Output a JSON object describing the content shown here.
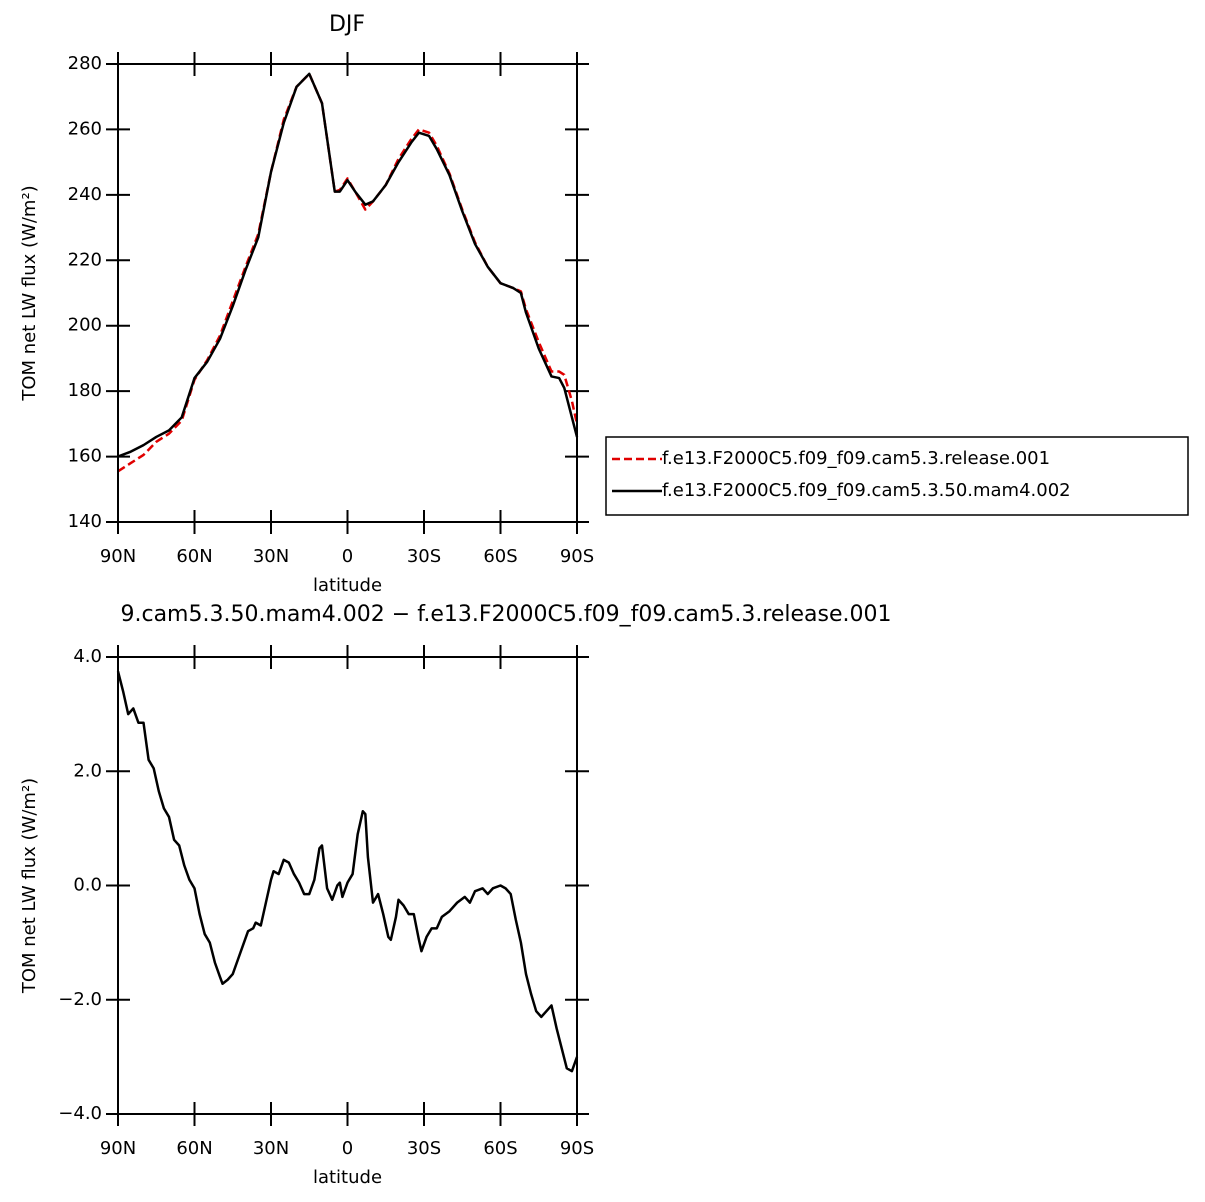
{
  "chart_data": [
    {
      "type": "line",
      "title": "DJF",
      "x_label": "latitude",
      "y_label": "TOM net LW flux (W/m²)",
      "x": [
        90,
        85,
        80,
        75,
        70,
        65,
        60,
        55,
        50,
        45,
        40,
        35,
        30,
        25,
        20,
        15,
        10,
        5,
        3,
        0,
        -3,
        -7,
        -10,
        -15,
        -20,
        -25,
        -28,
        -32,
        -35,
        -40,
        -45,
        -50,
        -55,
        -60,
        -65,
        -68,
        -70,
        -75,
        -80,
        -83,
        -85,
        -88,
        -90
      ],
      "series": [
        {
          "name": "f.e13.F2000C5.f09_f09.cam5.3.release.001",
          "color": "#e00000",
          "style": "dashed",
          "values": [
            155.5,
            158,
            160.5,
            164.5,
            167,
            171,
            183.5,
            189.5,
            197,
            207.5,
            218,
            228,
            247,
            263,
            273,
            277,
            268,
            241,
            241.5,
            245,
            241,
            235.5,
            238,
            243,
            251,
            257,
            260,
            259,
            255,
            246.5,
            235.5,
            225.5,
            218,
            213,
            211.5,
            210.5,
            205,
            195,
            186,
            186,
            185,
            177,
            170
          ]
        },
        {
          "name": "f.e13.F2000C5.f09_f09.cam5.3.50.mam4.002",
          "color": "#000000",
          "style": "solid",
          "values": [
            160,
            161.5,
            163.5,
            166,
            168,
            172,
            184,
            189,
            196,
            206,
            217,
            227,
            247,
            262,
            273,
            277,
            268,
            241,
            241,
            244.5,
            241,
            237,
            238,
            243,
            250,
            256,
            259,
            258,
            254,
            246,
            235,
            225,
            218,
            213,
            211.5,
            210,
            204,
            193,
            184.5,
            184,
            181,
            172,
            166
          ]
        }
      ],
      "xlim": [
        90,
        -90
      ],
      "xticks": [
        {
          "value": 90,
          "label": "90N"
        },
        {
          "value": 60,
          "label": "60N"
        },
        {
          "value": 30,
          "label": "30N"
        },
        0,
        {
          "value": -30,
          "label": "30S"
        },
        {
          "value": -60,
          "label": "60S"
        },
        {
          "value": -90,
          "label": "90S"
        }
      ],
      "ylim": [
        140,
        280
      ],
      "yticks": [
        140,
        160,
        180,
        200,
        220,
        240,
        260,
        280
      ],
      "legend": "right"
    },
    {
      "type": "line",
      "title": "9.cam5.3.50.mam4.002 − f.e13.F2000C5.f09_f09.cam5.3.release.001",
      "x_label": "latitude",
      "y_label": "TOM net LW flux (W/m²)",
      "x": [
        90,
        88,
        86,
        84,
        82,
        80,
        78,
        76,
        74,
        72,
        70,
        68,
        66,
        64,
        62,
        60,
        58,
        56,
        54,
        52,
        50,
        49,
        47,
        45,
        43,
        41,
        39,
        37,
        36,
        34,
        32,
        30,
        29,
        27,
        25,
        23,
        21,
        19,
        17,
        15,
        13,
        11,
        10,
        8,
        6,
        4,
        3,
        2,
        0,
        -2,
        -4,
        -6,
        -7,
        -8,
        -10,
        -12,
        -14,
        -16,
        -17,
        -19,
        -20,
        -22,
        -24,
        -26,
        -28,
        -29,
        -31,
        -33,
        -35,
        -37,
        -40,
        -43,
        -46,
        -48,
        -50,
        -53,
        -55,
        -57,
        -60,
        -62,
        -64,
        -66,
        -68,
        -70,
        -72,
        -74,
        -76,
        -78,
        -80,
        -82,
        -84,
        -86,
        -88,
        -90
      ],
      "series": [
        {
          "color": "#000000",
          "style": "solid",
          "values": [
            3.75,
            3.4,
            3.0,
            3.1,
            2.85,
            2.85,
            2.2,
            2.05,
            1.65,
            1.35,
            1.2,
            0.8,
            0.7,
            0.35,
            0.1,
            -0.05,
            -0.5,
            -0.85,
            -1.0,
            -1.35,
            -1.6,
            -1.72,
            -1.65,
            -1.55,
            -1.3,
            -1.05,
            -0.8,
            -0.75,
            -0.65,
            -0.7,
            -0.3,
            0.1,
            0.25,
            0.2,
            0.45,
            0.4,
            0.2,
            0.05,
            -0.15,
            -0.15,
            0.1,
            0.65,
            0.7,
            -0.05,
            -0.25,
            0.0,
            0.05,
            -0.2,
            0.05,
            0.2,
            0.9,
            1.3,
            1.25,
            0.5,
            -0.3,
            -0.15,
            -0.5,
            -0.9,
            -0.95,
            -0.55,
            -0.25,
            -0.35,
            -0.5,
            -0.5,
            -0.95,
            -1.15,
            -0.9,
            -0.75,
            -0.75,
            -0.55,
            -0.45,
            -0.3,
            -0.2,
            -0.3,
            -0.1,
            -0.05,
            -0.15,
            -0.05,
            0.0,
            -0.05,
            -0.15,
            -0.6,
            -1.0,
            -1.55,
            -1.9,
            -2.2,
            -2.3,
            -2.2,
            -2.1,
            -2.5,
            -2.85,
            -3.2,
            -3.25,
            -3.0
          ]
        }
      ],
      "xlim": [
        90,
        -90
      ],
      "xticks": [
        {
          "value": 90,
          "label": "90N"
        },
        {
          "value": 60,
          "label": "60N"
        },
        {
          "value": 30,
          "label": "30N"
        },
        0,
        {
          "value": -30,
          "label": "30S"
        },
        {
          "value": -60,
          "label": "60S"
        },
        {
          "value": -90,
          "label": "90S"
        }
      ],
      "ylim": [
        -4,
        4
      ],
      "yticks": [
        {
          "value": -4,
          "label": "−4.0"
        },
        {
          "value": -2,
          "label": "−2.0"
        },
        {
          "value": 0,
          "label": "0.0"
        },
        {
          "value": 2,
          "label": "2.0"
        },
        {
          "value": 4,
          "label": "4.0"
        }
      ]
    }
  ]
}
